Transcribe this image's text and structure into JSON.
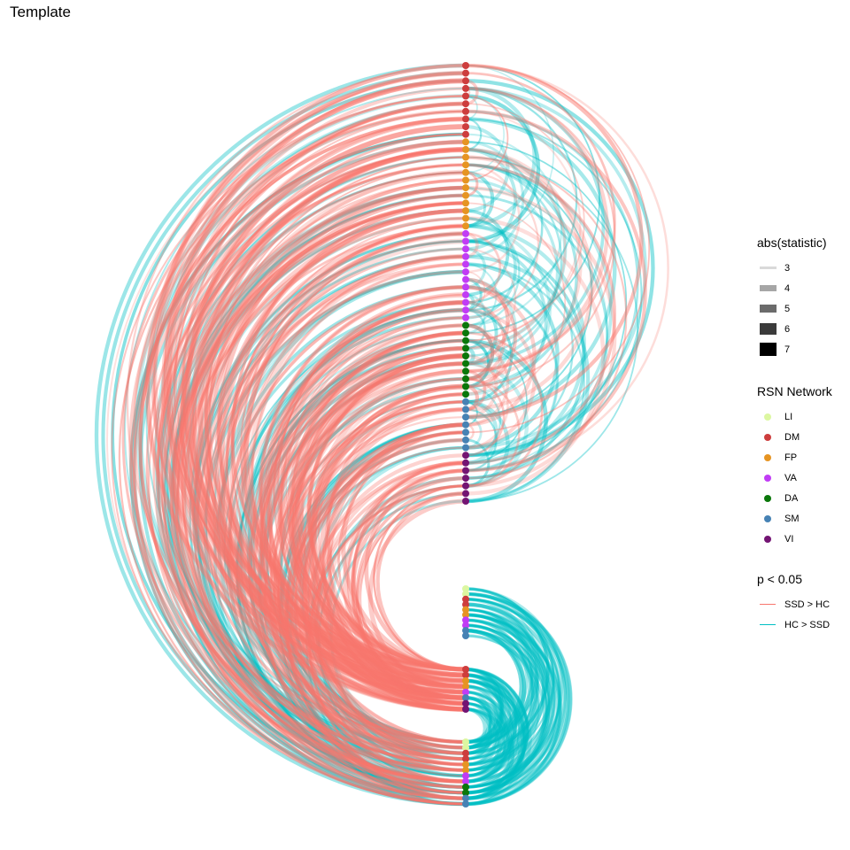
{
  "title": "Template",
  "legend_width": {
    "title": "abs(statistic)",
    "items": [
      {
        "label": "3",
        "value": 3,
        "color": "#d9d9d9"
      },
      {
        "label": "4",
        "value": 4,
        "color": "#a6a6a6"
      },
      {
        "label": "5",
        "value": 5,
        "color": "#6b6b6b"
      },
      {
        "label": "6",
        "value": 6,
        "color": "#3b3b3b"
      },
      {
        "label": "7",
        "value": 7,
        "color": "#000000"
      }
    ]
  },
  "legend_network": {
    "title": "RSN Network",
    "items": [
      {
        "label": "LI",
        "color": "#dcf7a1"
      },
      {
        "label": "DM",
        "color": "#cd3d3d"
      },
      {
        "label": "FP",
        "color": "#e69422"
      },
      {
        "label": "VA",
        "color": "#c13cf5"
      },
      {
        "label": "DA",
        "color": "#0a770a"
      },
      {
        "label": "SM",
        "color": "#4682b4"
      },
      {
        "label": "VI",
        "color": "#731473"
      }
    ]
  },
  "legend_direction": {
    "title": "p < 0.05",
    "items": [
      {
        "label": "SSD > HC",
        "color": "#f8766d"
      },
      {
        "label": "HC > SSD",
        "color": "#00bfc4"
      }
    ]
  },
  "chart_data": {
    "type": "arc",
    "title": "Template",
    "node_groups": [
      {
        "networks": [
          "DM",
          "DM",
          "DM",
          "DM",
          "DM",
          "DM",
          "DM",
          "DM",
          "DM",
          "DM",
          "FP",
          "FP",
          "FP",
          "FP",
          "FP",
          "FP",
          "FP",
          "FP",
          "FP",
          "FP",
          "FP",
          "FP",
          "VA",
          "VA",
          "VA",
          "VA",
          "VA",
          "VA",
          "VA",
          "VA",
          "VA",
          "VA",
          "VA",
          "VA",
          "DA",
          "DA",
          "DA",
          "DA",
          "DA",
          "DA",
          "DA",
          "DA",
          "DA",
          "DA",
          "SM",
          "SM",
          "SM",
          "SM",
          "SM",
          "SM",
          "SM",
          "VI",
          "VI",
          "VI",
          "VI",
          "VI",
          "VI",
          "VI"
        ]
      },
      {
        "networks": [
          "LI",
          "LI",
          "DM",
          "DM",
          "FP",
          "FP",
          "VA",
          "VA",
          "SM",
          "SM"
        ]
      },
      {
        "networks": [
          "DM",
          "DM",
          "FP",
          "FP",
          "VA",
          "SM",
          "VI",
          "VI"
        ]
      },
      {
        "networks": [
          "LI",
          "LI",
          "DM",
          "DM",
          "FP",
          "FP",
          "VA",
          "VA",
          "DA",
          "DA",
          "SM",
          "SM"
        ]
      }
    ],
    "edge_bundles": [
      {
        "direction": "HC > SSD",
        "from_group": 0,
        "to_group": 0,
        "side": "right",
        "abs_statistic": [
          3,
          5
        ]
      },
      {
        "direction": "SSD > HC",
        "from_group": 0,
        "to_group": 0,
        "side": "right",
        "abs_statistic": [
          3,
          5
        ]
      },
      {
        "direction": "HC > SSD",
        "from_group": 0,
        "to_group": 3,
        "side": "left",
        "abs_statistic": [
          3,
          5
        ]
      },
      {
        "direction": "SSD > HC",
        "from_group": 0,
        "to_group": 2,
        "side": "left",
        "abs_statistic": [
          3,
          6
        ]
      },
      {
        "direction": "SSD > HC",
        "from_group": 0,
        "to_group": 3,
        "side": "left",
        "abs_statistic": [
          3,
          5
        ]
      },
      {
        "direction": "HC > SSD",
        "from_group": 1,
        "to_group": 3,
        "side": "right",
        "abs_statistic": [
          3,
          5
        ]
      },
      {
        "direction": "HC > SSD",
        "from_group": 2,
        "to_group": 3,
        "side": "right",
        "abs_statistic": [
          3,
          5
        ]
      }
    ]
  }
}
